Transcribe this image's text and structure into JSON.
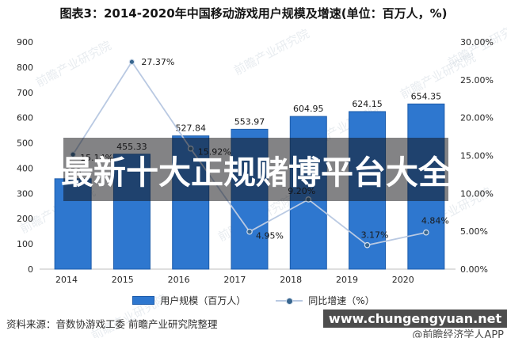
{
  "title": "图表3：2014-2020年中国移动游戏用户规模及增速(单位：百万人，%)",
  "chart_data": {
    "type": "bar",
    "title": "图表3：2014-2020年中国移动游戏用户规模及增速(单位：百万人，%)",
    "categories": [
      "2014",
      "2015",
      "2016",
      "2017",
      "2018",
      "2019",
      "2020"
    ],
    "series": [
      {
        "name": "用户规模（百万人）",
        "chart_type": "bar",
        "axis": "left",
        "color": "#2e77cf",
        "border_color": "#1d5cab",
        "values": [
          358,
          455.33,
          527.84,
          553.97,
          604.95,
          624.15,
          654.35
        ],
        "labels": [
          "358",
          "455.33",
          "527.84",
          "553.97",
          "604.95",
          "624.15",
          "654.35"
        ]
      },
      {
        "name": "同比增速（%）",
        "chart_type": "line",
        "axis": "right",
        "color": "#b9c9e2",
        "marker_color": "#38668f",
        "values": [
          15.14,
          27.37,
          15.92,
          4.95,
          9.2,
          3.17,
          4.84
        ],
        "labels": [
          "15.14%",
          "27.37%",
          "15.92%",
          "4.95%",
          "9.20%",
          "3.17%",
          "4.84%"
        ]
      }
    ],
    "left_axis": {
      "min": 0,
      "max": 900,
      "step": 100,
      "ticks": [
        "900",
        "800",
        "700",
        "600",
        "500",
        "400",
        "300",
        "200",
        "100",
        "0"
      ]
    },
    "right_axis": {
      "min": 0,
      "max": 30,
      "step": 5,
      "ticks": [
        "30.00%",
        "25.00%",
        "20.00%",
        "15.00%",
        "10.00%",
        "5.00%",
        "0.00%"
      ]
    },
    "grid": false,
    "legend_position": "bottom"
  },
  "legend": {
    "items": [
      {
        "label": "用户规模（百万人）",
        "swatch": "bar"
      },
      {
        "label": "同比增速（%）",
        "swatch": "line"
      }
    ]
  },
  "source": "资料来源：音数协游戏工委 前瞻产业研究院整理",
  "watermarks": {
    "banner_text": "最新十大正规赌博平台大全",
    "site_text": "www.chungengyuan.net",
    "handle_text": "@前瞻经济学人APP",
    "background_text": "前瞻产业研究院"
  },
  "colors": {
    "bar": "#2e77cf",
    "bar_border": "#1d5cab",
    "line": "#b9c9e2",
    "marker": "#38668f",
    "axis_line": "#bfbfbf",
    "banner_bg": "rgba(18,18,22,0.52)",
    "site_bg": "rgba(58,58,58,0.9)"
  }
}
